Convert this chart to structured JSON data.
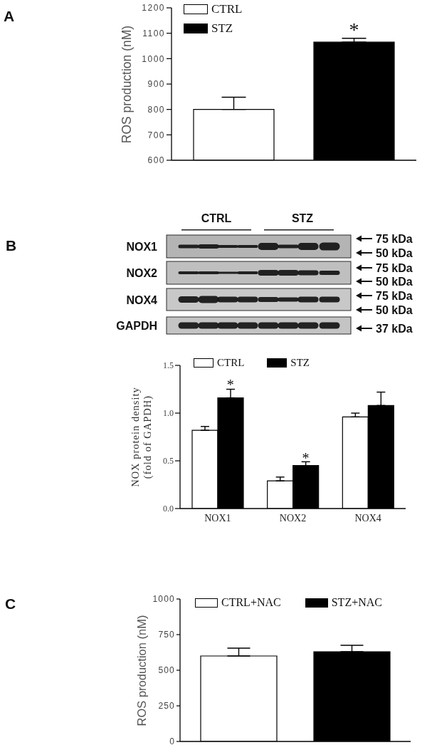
{
  "chart_data": [
    {
      "type": "bar",
      "title": "A",
      "ylabel": "ROS production (nM)",
      "categories": [
        null
      ],
      "series": [
        {
          "name": "CTRL",
          "color": "#ffffff",
          "values": [
            800
          ],
          "errors": [
            [
              800,
              848
            ]
          ]
        },
        {
          "name": "STZ",
          "color": "#000000",
          "values": [
            1065
          ],
          "errors": [
            [
              1065,
              1080
            ]
          ]
        }
      ],
      "ylim": [
        600,
        1200
      ],
      "yticks": [
        600,
        700,
        800,
        900,
        1000,
        1100,
        1200
      ],
      "legend": "top left",
      "tick_labels": "y",
      "annotations": [
        "*"
      ]
    },
    {
      "type": "other",
      "title": "B",
      "annotations": [
        "CTRL",
        "STZ",
        "NOX1",
        "NOX2",
        "NOX4",
        "GAPDH",
        "75 kDa",
        "50 kDa",
        "75 kDa",
        "50 kDa",
        "75 kDa",
        "50 kDa",
        "37 kDa"
      ]
    },
    {
      "type": "bar",
      "ylabel": "NOX protein density\n(fold of GAPDH)",
      "categories": [
        "NOX1",
        "NOX2",
        "NOX4"
      ],
      "series": [
        {
          "name": "CTRL",
          "color": "#ffffff",
          "values": [
            0.82,
            0.29,
            0.96
          ],
          "errors": [
            [
              0.82,
              0.86
            ],
            [
              0.29,
              0.33
            ],
            [
              0.96,
              1.0
            ]
          ]
        },
        {
          "name": "STZ",
          "color": "#000000",
          "values": [
            1.16,
            0.45,
            1.08
          ],
          "errors": [
            [
              1.16,
              1.25
            ],
            [
              0.45,
              0.49
            ],
            [
              1.08,
              1.22
            ]
          ]
        }
      ],
      "ylim": [
        0,
        1.5
      ],
      "yticks": [
        {
          "value": 0,
          "label": "0.0"
        },
        {
          "value": 0.5,
          "label": "0.5"
        },
        {
          "value": 1,
          "label": "1.0"
        },
        {
          "value": 1.5,
          "label": "1.5"
        }
      ],
      "legend": "top",
      "annotations": [
        "*",
        "*"
      ]
    },
    {
      "type": "bar",
      "title": "C",
      "ylabel": "ROS production (nM)",
      "categories": [
        null
      ],
      "series": [
        {
          "name": "CTRL+NAC",
          "color": "#ffffff",
          "values": [
            600
          ],
          "errors": [
            [
              600,
              655
            ]
          ]
        },
        {
          "name": "STZ+NAC",
          "color": "#000000",
          "values": [
            630
          ],
          "errors": [
            [
              630,
              675
            ]
          ]
        }
      ],
      "ylim": [
        0,
        1000
      ],
      "yticks": [
        0,
        250,
        500,
        750,
        1000
      ],
      "legend": "top",
      "tick_labels": "y"
    }
  ]
}
